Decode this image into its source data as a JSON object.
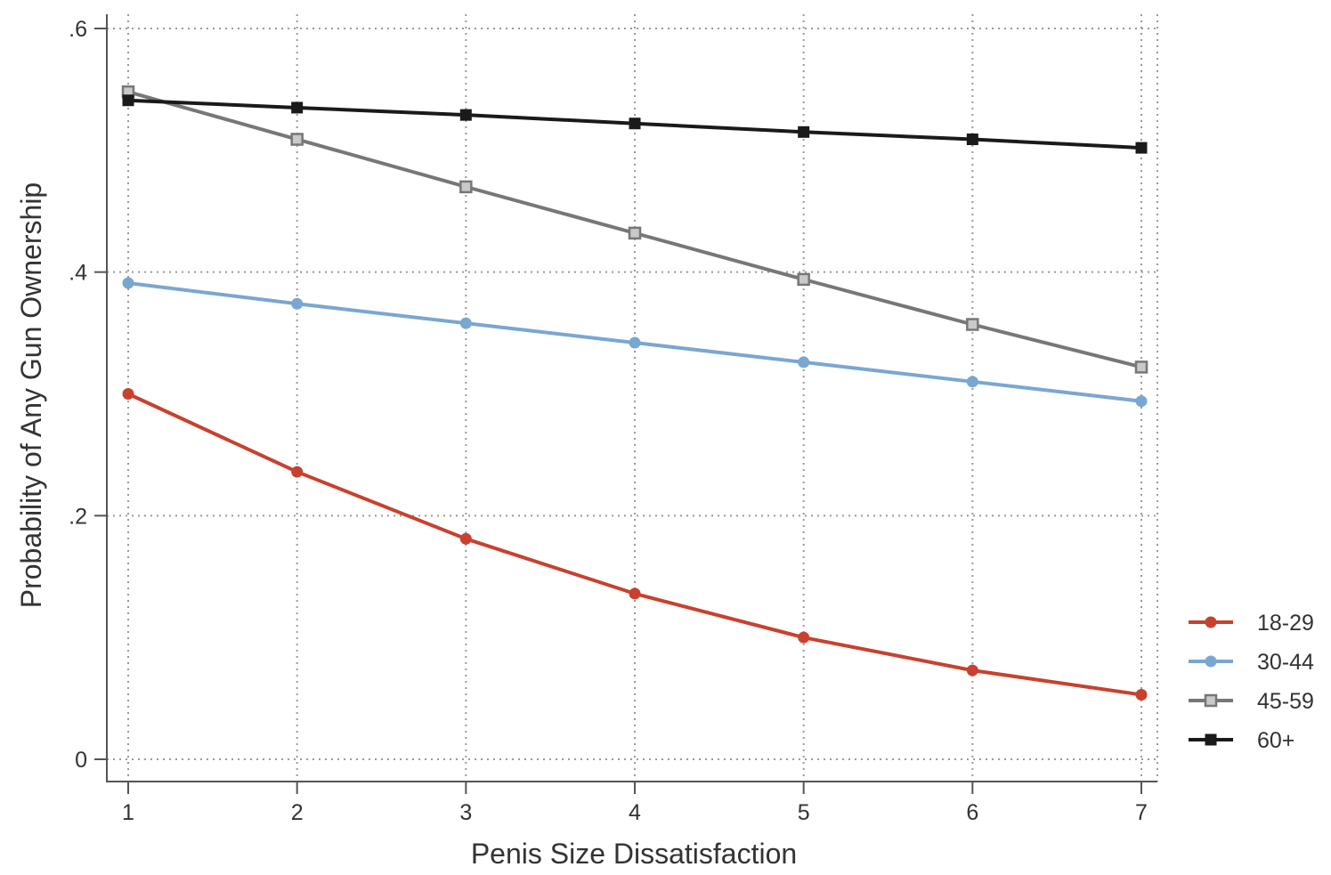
{
  "chart_data": {
    "type": "line",
    "title": "",
    "xlabel": "Penis Size Dissatisfaction",
    "ylabel": "Probability of Any Gun Ownership",
    "x": [
      1,
      2,
      3,
      4,
      5,
      6,
      7
    ],
    "xlim": [
      1,
      7
    ],
    "ylim": [
      0,
      0.6
    ],
    "xticks": [
      1,
      2,
      3,
      4,
      5,
      6,
      7
    ],
    "xtick_labels": [
      "1",
      "2",
      "3",
      "4",
      "5",
      "6",
      "7"
    ],
    "yticks": [
      0,
      0.2,
      0.4,
      0.6
    ],
    "ytick_labels": [
      "0",
      ".2",
      ".4",
      ".6"
    ],
    "grid": true,
    "legend_position": "right",
    "series": [
      {
        "name": "18-29",
        "color": "#c8412f",
        "marker": "circle",
        "values": [
          0.3,
          0.236,
          0.181,
          0.136,
          0.1,
          0.073,
          0.053
        ]
      },
      {
        "name": "30-44",
        "color": "#7aa6d2",
        "marker": "circle",
        "values": [
          0.391,
          0.374,
          0.358,
          0.342,
          0.326,
          0.31,
          0.294
        ]
      },
      {
        "name": "45-59",
        "color": "#777777",
        "marker": "square-hollow",
        "values": [
          0.548,
          0.509,
          0.47,
          0.432,
          0.394,
          0.357,
          0.322
        ]
      },
      {
        "name": "60+",
        "color": "#1a1a1a",
        "marker": "square",
        "values": [
          0.541,
          0.535,
          0.529,
          0.522,
          0.515,
          0.509,
          0.502
        ]
      }
    ]
  }
}
